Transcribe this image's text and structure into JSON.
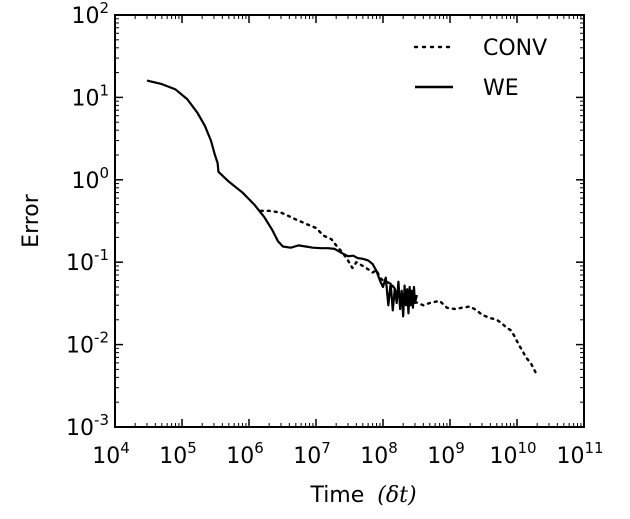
{
  "chart_data": {
    "type": "line",
    "xlabel": "Time",
    "xlabel_unit": "(δt)",
    "ylabel": "Error",
    "xscale": "log",
    "yscale": "log",
    "xlim": [
      10000,
      100000000000
    ],
    "ylim": [
      0.001,
      100
    ],
    "x_ticks": [
      {
        "base": "10",
        "exp": "4"
      },
      {
        "base": "10",
        "exp": "5"
      },
      {
        "base": "10",
        "exp": "6"
      },
      {
        "base": "10",
        "exp": "7"
      },
      {
        "base": "10",
        "exp": "8"
      },
      {
        "base": "10",
        "exp": "9"
      },
      {
        "base": "10",
        "exp": "10"
      },
      {
        "base": "10",
        "exp": "11"
      }
    ],
    "y_ticks": [
      {
        "base": "10",
        "exp": "-3"
      },
      {
        "base": "10",
        "exp": "-2"
      },
      {
        "base": "10",
        "exp": "-1"
      },
      {
        "base": "10",
        "exp": "0"
      },
      {
        "base": "10",
        "exp": "1"
      },
      {
        "base": "10",
        "exp": "2"
      }
    ],
    "grid": false,
    "legend_position": "top-right",
    "series": [
      {
        "name": "CONV",
        "style": "dotted",
        "color": "#000000",
        "points": [
          [
            1500000,
            0.42
          ],
          [
            2000000,
            0.42
          ],
          [
            3000000,
            0.4
          ],
          [
            4000000,
            0.36
          ],
          [
            5000000,
            0.33
          ],
          [
            6000000,
            0.31
          ],
          [
            8000000,
            0.28
          ],
          [
            10000000,
            0.26
          ],
          [
            13000000,
            0.21
          ],
          [
            17000000,
            0.19
          ],
          [
            20000000,
            0.16
          ],
          [
            25000000,
            0.13
          ],
          [
            30000000,
            0.105
          ],
          [
            35000000,
            0.085
          ],
          [
            40000000,
            0.1
          ],
          [
            50000000,
            0.09
          ],
          [
            60000000,
            0.082
          ],
          [
            70000000,
            0.075
          ],
          [
            80000000,
            0.08
          ],
          [
            90000000,
            0.065
          ],
          [
            100000000,
            0.06
          ],
          [
            130000000,
            0.055
          ],
          [
            160000000,
            0.045
          ],
          [
            200000000,
            0.04
          ],
          [
            250000000,
            0.035
          ],
          [
            300000000,
            0.033
          ],
          [
            400000000,
            0.03
          ],
          [
            500000000,
            0.032
          ],
          [
            700000000,
            0.034
          ],
          [
            900000000,
            0.028
          ],
          [
            1200000000,
            0.027
          ],
          [
            1500000000,
            0.028
          ],
          [
            2000000000,
            0.029
          ],
          [
            2500000000,
            0.026
          ],
          [
            3000000000,
            0.023
          ],
          [
            4000000000,
            0.021
          ],
          [
            5000000000,
            0.02
          ],
          [
            6000000000,
            0.018
          ],
          [
            7000000000,
            0.016
          ],
          [
            8000000000,
            0.015
          ],
          [
            9000000000,
            0.013
          ],
          [
            10000000000,
            0.011
          ],
          [
            11000000000,
            0.0095
          ],
          [
            12000000000,
            0.0085
          ],
          [
            13000000000,
            0.0075
          ],
          [
            14000000000,
            0.0068
          ],
          [
            16000000000,
            0.006
          ],
          [
            18000000000,
            0.005
          ],
          [
            20000000000,
            0.0042
          ]
        ]
      },
      {
        "name": "WE",
        "style": "solid",
        "color": "#000000",
        "points": [
          [
            30000,
            16
          ],
          [
            50000,
            14.5
          ],
          [
            80000,
            12.5
          ],
          [
            120000,
            9.5
          ],
          [
            170000,
            6.5
          ],
          [
            220000,
            4.5
          ],
          [
            270000,
            3
          ],
          [
            310000,
            2
          ],
          [
            340000,
            1.6
          ],
          [
            350000,
            1.25
          ],
          [
            500000,
            0.95
          ],
          [
            800000,
            0.7
          ],
          [
            1200000,
            0.5
          ],
          [
            1700000,
            0.35
          ],
          [
            2200000,
            0.25
          ],
          [
            2700000,
            0.18
          ],
          [
            3200000,
            0.155
          ],
          [
            4200000,
            0.15
          ],
          [
            5500000,
            0.16
          ],
          [
            7000000,
            0.155
          ],
          [
            9000000,
            0.15
          ],
          [
            12000000,
            0.148
          ],
          [
            15000000,
            0.148
          ],
          [
            19000000,
            0.145
          ],
          [
            24000000,
            0.13
          ],
          [
            30000000,
            0.118
          ],
          [
            36000000,
            0.12
          ],
          [
            42000000,
            0.112
          ],
          [
            50000000,
            0.11
          ],
          [
            60000000,
            0.105
          ],
          [
            70000000,
            0.095
          ],
          [
            80000000,
            0.078
          ],
          [
            90000000,
            0.06
          ],
          [
            100000000,
            0.05
          ],
          [
            110000000,
            0.065
          ],
          [
            120000000,
            0.03
          ],
          [
            130000000,
            0.055
          ],
          [
            140000000,
            0.026
          ],
          [
            150000000,
            0.048
          ],
          [
            160000000,
            0.032
          ],
          [
            170000000,
            0.058
          ],
          [
            180000000,
            0.027
          ],
          [
            190000000,
            0.045
          ],
          [
            200000000,
            0.022
          ],
          [
            210000000,
            0.052
          ],
          [
            220000000,
            0.03
          ],
          [
            230000000,
            0.047
          ],
          [
            240000000,
            0.024
          ],
          [
            250000000,
            0.05
          ],
          [
            260000000,
            0.03
          ],
          [
            270000000,
            0.045
          ],
          [
            280000000,
            0.028
          ],
          [
            290000000,
            0.05
          ],
          [
            300000000,
            0.032
          ],
          [
            320000000,
            0.04
          ]
        ]
      }
    ]
  }
}
